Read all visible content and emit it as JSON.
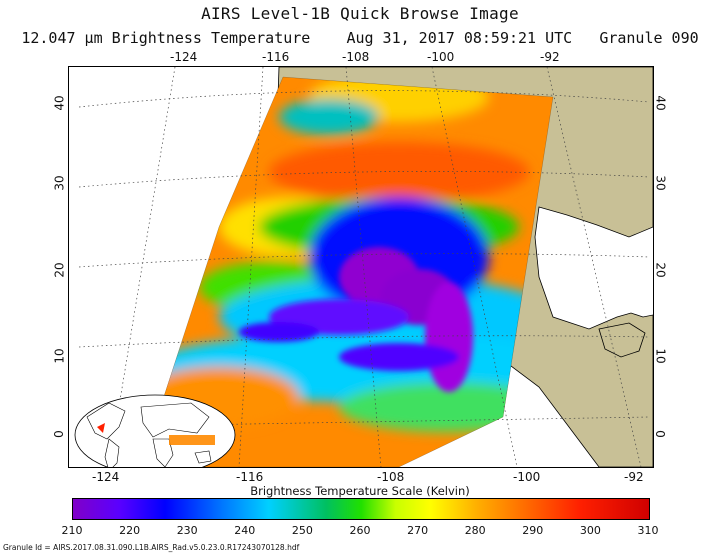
{
  "header": {
    "title": "AIRS Level-1B Quick Browse Image",
    "subtitle_wavelength": "12.047 μm Brightness Temperature",
    "subtitle_datetime": "Aug 31, 2017 08:59:21 UTC",
    "subtitle_granule": "Granule 090"
  },
  "map": {
    "top_lon_ticks": [
      "-124",
      "-116",
      "-108",
      "-100",
      "-92"
    ],
    "bottom_lon_ticks": [
      "-124",
      "-116",
      "-108",
      "-100",
      "-92"
    ],
    "left_lat_ticks": [
      "40",
      "30",
      "20",
      "10",
      "0"
    ],
    "right_lat_ticks": [
      "40",
      "30",
      "20",
      "10",
      "0"
    ],
    "land_color": "#c8c096",
    "ocean_color": "#ffffff"
  },
  "colorbar": {
    "label": "Brightness Temperature Scale (Kelvin)",
    "ticks": [
      "210",
      "220",
      "230",
      "240",
      "250",
      "260",
      "270",
      "280",
      "290",
      "300",
      "310"
    ]
  },
  "footer": {
    "granule_id": "Granule Id = AIRS.2017.08.31.090.L1B.AIRS_Rad.v5.0.23.0.R17243070128.hdf"
  }
}
